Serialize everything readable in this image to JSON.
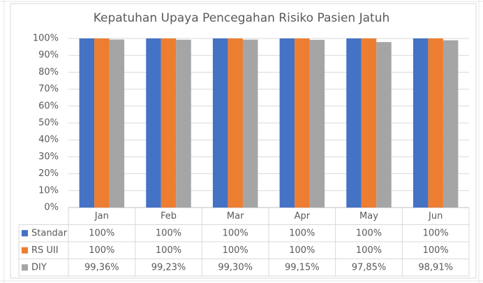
{
  "chart_data": {
    "type": "bar",
    "title": "Kepatuhan Upaya Pencegahan Risiko Pasien Jatuh",
    "categories": [
      "Jan",
      "Feb",
      "Mar",
      "Apr",
      "May",
      "Jun"
    ],
    "series": [
      {
        "name": "Standar",
        "color": "#4472c4",
        "values": [
          100,
          100,
          100,
          100,
          100,
          100
        ],
        "value_labels": [
          "100%",
          "100%",
          "100%",
          "100%",
          "100%",
          "100%"
        ]
      },
      {
        "name": "RS UII",
        "color": "#ed7d31",
        "values": [
          100,
          100,
          100,
          100,
          100,
          100
        ],
        "value_labels": [
          "100%",
          "100%",
          "100%",
          "100%",
          "100%",
          "100%"
        ]
      },
      {
        "name": "DIY",
        "color": "#a5a5a5",
        "values": [
          99.36,
          99.23,
          99.3,
          99.15,
          97.85,
          98.91
        ],
        "value_labels": [
          "99,36%",
          "99,23%",
          "99,30%",
          "99,15%",
          "97,85%",
          "98,91%"
        ]
      }
    ],
    "ylim": [
      0,
      100
    ],
    "yticks": [
      {
        "value": 0,
        "label": "0%"
      },
      {
        "value": 10,
        "label": "10%"
      },
      {
        "value": 20,
        "label": "20%"
      },
      {
        "value": 30,
        "label": "30%"
      },
      {
        "value": 40,
        "label": "40%"
      },
      {
        "value": 50,
        "label": "50%"
      },
      {
        "value": 60,
        "label": "60%"
      },
      {
        "value": 70,
        "label": "70%"
      },
      {
        "value": 80,
        "label": "80%"
      },
      {
        "value": 90,
        "label": "90%"
      },
      {
        "value": 100,
        "label": "100%"
      }
    ],
    "grid": true
  }
}
